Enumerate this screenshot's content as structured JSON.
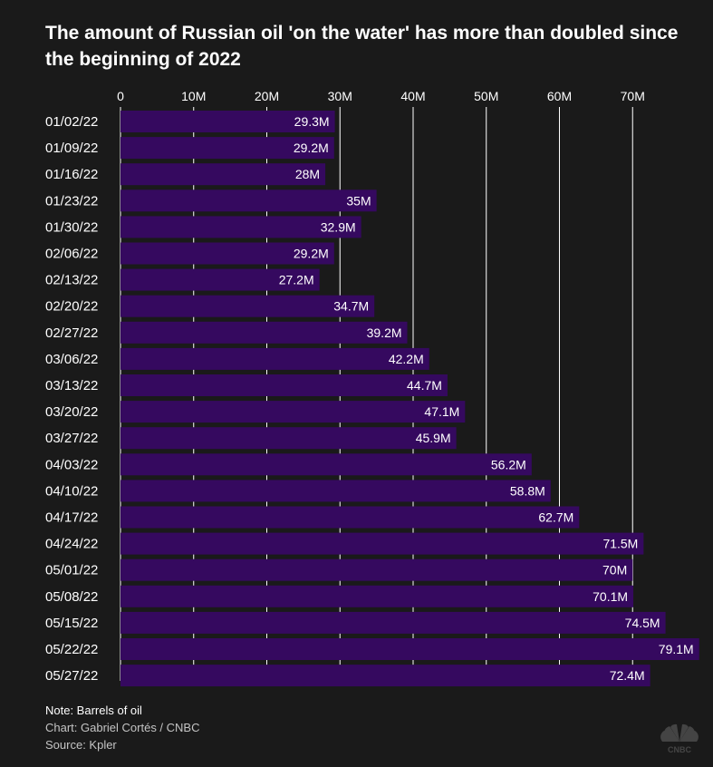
{
  "title": "The amount of Russian oil 'on the water' has more than doubled since the beginning of 2022",
  "footer": {
    "note": "Note: Barrels of oil",
    "chart_credit": "Chart: Gabriel Cortés / CNBC",
    "source": "Source: Kpler"
  },
  "logo": {
    "icon": "cnbc-peacock-icon",
    "text": "CNBC"
  },
  "colors": {
    "background": "#1a1a1a",
    "bar": "#35095f",
    "gridline": "#ffffff",
    "text": "#ffffff"
  },
  "chart_data": {
    "type": "bar",
    "orientation": "horizontal",
    "title": "The amount of Russian oil 'on the water' has more than doubled since the beginning of 2022",
    "xlabel": "",
    "ylabel": "",
    "xlim": [
      0,
      80
    ],
    "x_ticks": [
      0,
      10,
      20,
      30,
      40,
      50,
      60,
      70
    ],
    "x_tick_labels": [
      "0",
      "10M",
      "20M",
      "30M",
      "40M",
      "50M",
      "60M",
      "70M"
    ],
    "grid": true,
    "categories": [
      "01/02/22",
      "01/09/22",
      "01/16/22",
      "01/23/22",
      "01/30/22",
      "02/06/22",
      "02/13/22",
      "02/20/22",
      "02/27/22",
      "03/06/22",
      "03/13/22",
      "03/20/22",
      "03/27/22",
      "04/03/22",
      "04/10/22",
      "04/17/22",
      "04/24/22",
      "05/01/22",
      "05/08/22",
      "05/15/22",
      "05/22/22",
      "05/27/22"
    ],
    "values": [
      29.3,
      29.2,
      28,
      35,
      32.9,
      29.2,
      27.2,
      34.7,
      39.2,
      42.2,
      44.7,
      47.1,
      45.9,
      56.2,
      58.8,
      62.7,
      71.5,
      70,
      70.1,
      74.5,
      79.1,
      72.4
    ],
    "value_labels": [
      "29.3M",
      "29.2M",
      "28M",
      "35M",
      "32.9M",
      "29.2M",
      "27.2M",
      "34.7M",
      "39.2M",
      "42.2M",
      "44.7M",
      "47.1M",
      "45.9M",
      "56.2M",
      "58.8M",
      "62.7M",
      "71.5M",
      "70M",
      "70.1M",
      "74.5M",
      "79.1M",
      "72.4M"
    ],
    "units": "million barrels"
  }
}
